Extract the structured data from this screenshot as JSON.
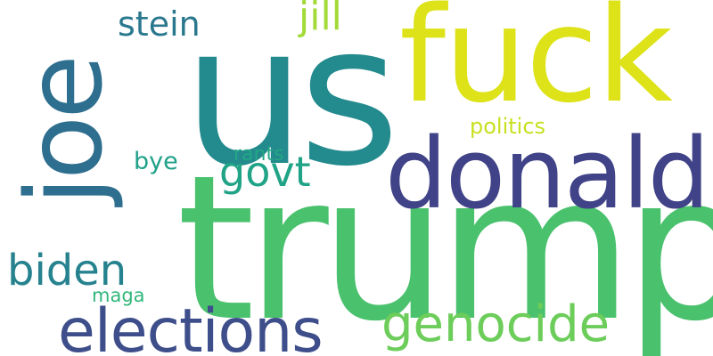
{
  "words": [
    {
      "text": "us",
      "color": "#238a8d"
    },
    {
      "text": "fuck",
      "color": "#dde318"
    },
    {
      "text": "trump",
      "color": "#4ac16d"
    },
    {
      "text": "donald",
      "color": "#404387"
    },
    {
      "text": "joe",
      "color": "#2e6e8e"
    },
    {
      "text": "elections",
      "color": "#3d4e8a"
    },
    {
      "text": "genocide",
      "color": "#6ccd5a"
    },
    {
      "text": "biden",
      "color": "#26828e"
    },
    {
      "text": "govt",
      "color": "#20a386"
    },
    {
      "text": "stein",
      "color": "#2a788e"
    },
    {
      "text": "jill",
      "color": "#a2da37"
    },
    {
      "text": "politics",
      "color": "#c8e020"
    },
    {
      "text": "bye",
      "color": "#1fa088"
    },
    {
      "text": "rants",
      "color": "#22a785"
    },
    {
      "text": "maga",
      "color": "#32b67a"
    }
  ]
}
